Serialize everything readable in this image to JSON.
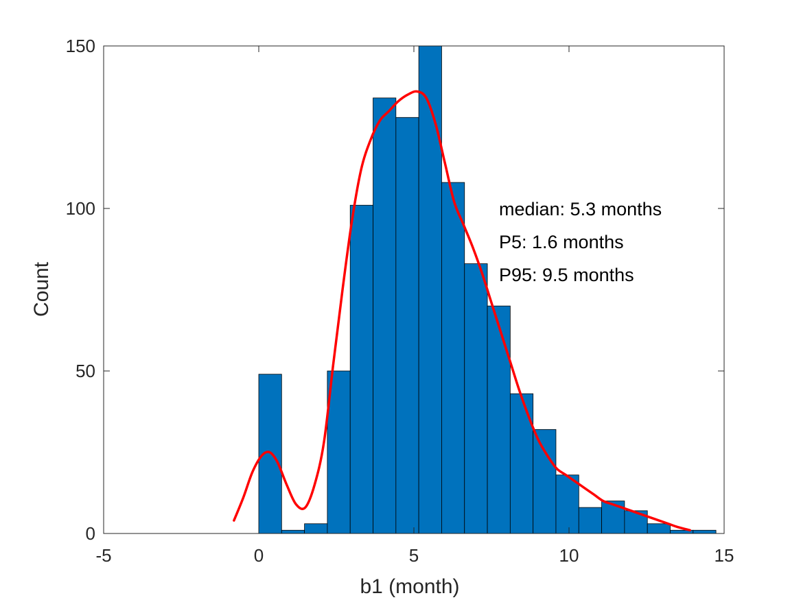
{
  "chart_data": {
    "type": "bar",
    "subtype": "histogram",
    "title": "",
    "xlabel": "b1 (month)",
    "ylabel": "Count",
    "xlim": [
      -5,
      15
    ],
    "ylim": [
      0,
      150
    ],
    "xticks": [
      -5,
      0,
      5,
      10,
      15
    ],
    "yticks": [
      0,
      50,
      100,
      150
    ],
    "xtick_labels": [
      "-5",
      "0",
      "5",
      "10",
      "15"
    ],
    "ytick_labels": [
      "0",
      "50",
      "100",
      "150"
    ],
    "grid": false,
    "bin_width": 0.7368,
    "bins": [
      {
        "x0": 0.0,
        "x1": 0.7368,
        "count": 49
      },
      {
        "x0": 0.7368,
        "x1": 1.4737,
        "count": 1
      },
      {
        "x0": 1.4737,
        "x1": 2.2105,
        "count": 3
      },
      {
        "x0": 2.2105,
        "x1": 2.9474,
        "count": 50
      },
      {
        "x0": 2.9474,
        "x1": 3.6842,
        "count": 101
      },
      {
        "x0": 3.6842,
        "x1": 4.4211,
        "count": 134
      },
      {
        "x0": 4.4211,
        "x1": 5.1579,
        "count": 128
      },
      {
        "x0": 5.1579,
        "x1": 5.8947,
        "count": 150
      },
      {
        "x0": 5.8947,
        "x1": 6.6316,
        "count": 108
      },
      {
        "x0": 6.6316,
        "x1": 7.3684,
        "count": 83
      },
      {
        "x0": 7.3684,
        "x1": 8.1053,
        "count": 70
      },
      {
        "x0": 8.1053,
        "x1": 8.8421,
        "count": 43
      },
      {
        "x0": 8.8421,
        "x1": 9.5789,
        "count": 32
      },
      {
        "x0": 9.5789,
        "x1": 10.3158,
        "count": 18
      },
      {
        "x0": 10.3158,
        "x1": 11.0526,
        "count": 8
      },
      {
        "x0": 11.0526,
        "x1": 11.7895,
        "count": 10
      },
      {
        "x0": 11.7895,
        "x1": 12.5263,
        "count": 7
      },
      {
        "x0": 12.5263,
        "x1": 13.2632,
        "count": 3
      },
      {
        "x0": 13.2632,
        "x1": 14.0,
        "count": 1
      },
      {
        "x0": 14.0,
        "x1": 14.7368,
        "count": 1
      }
    ],
    "density_curve": {
      "x": [
        -0.8,
        -0.5,
        -0.2,
        0.1,
        0.35,
        0.6,
        0.9,
        1.2,
        1.5,
        1.8,
        2.1,
        2.4,
        2.7,
        3.0,
        3.3,
        3.6,
        3.9,
        4.2,
        4.5,
        4.8,
        5.1,
        5.4,
        5.7,
        6.0,
        6.3,
        6.6,
        6.9,
        7.2,
        7.5,
        7.8,
        8.1,
        8.4,
        8.7,
        9.0,
        9.3,
        9.6,
        9.9,
        10.2,
        10.5,
        10.8,
        11.1,
        11.4,
        11.7,
        12.0,
        12.3,
        12.6,
        12.9,
        13.2,
        13.5,
        13.9
      ],
      "y": [
        4,
        11,
        19,
        24,
        25,
        22,
        15,
        9,
        8,
        15,
        28,
        52,
        75,
        96,
        112,
        121,
        127,
        130,
        133,
        135,
        136,
        134,
        126,
        114,
        102,
        95,
        88,
        80,
        71,
        62,
        53,
        44,
        36,
        29,
        24,
        20,
        18,
        16,
        14,
        12,
        10,
        9,
        8,
        7,
        6,
        5,
        4,
        3,
        2,
        1
      ]
    },
    "series": [
      {
        "name": "",
        "color": "#0072BD"
      },
      {
        "name": "",
        "color": "#FF0000"
      }
    ],
    "annotations": [
      "median: 5.3 months",
      "P5: 1.6 months",
      "P95: 9.5 months"
    ]
  }
}
